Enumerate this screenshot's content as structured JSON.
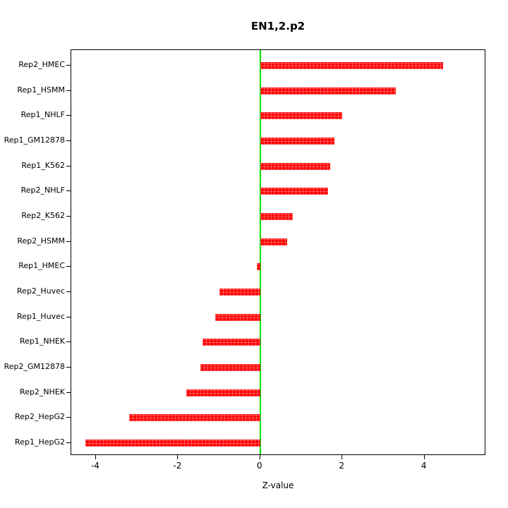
{
  "chart_data": {
    "type": "bar",
    "orientation": "horizontal",
    "title": "EN1,2.p2",
    "xlabel": "Z-value",
    "categories": [
      "Rep2_HMEC",
      "Rep1_HSMM",
      "Rep1_NHLF",
      "Rep1_GM12878",
      "Rep1_K562",
      "Rep2_NHLF",
      "Rep2_K562",
      "Rep2_HSMM",
      "Rep1_HMEC",
      "Rep2_Huvec",
      "Rep1_Huvec",
      "Rep1_NHEK",
      "Rep2_GM12878",
      "Rep2_NHEK",
      "Rep2_HepG2",
      "Rep1_HepG2"
    ],
    "values": [
      4.45,
      3.3,
      2.0,
      1.8,
      1.7,
      1.65,
      0.8,
      0.65,
      -0.08,
      -1.0,
      -1.1,
      -1.4,
      -1.45,
      -1.8,
      -3.2,
      -4.25
    ],
    "xlim": [
      -4.6,
      5.5
    ],
    "xticks": [
      -4,
      -2,
      0,
      2,
      4
    ],
    "xtick_labels": [
      "-4",
      "-2",
      "0",
      "2",
      "4"
    ],
    "bar_color": "#ff0000",
    "zero_line_color": "#00e000",
    "grid": false,
    "legend_position": "none"
  }
}
